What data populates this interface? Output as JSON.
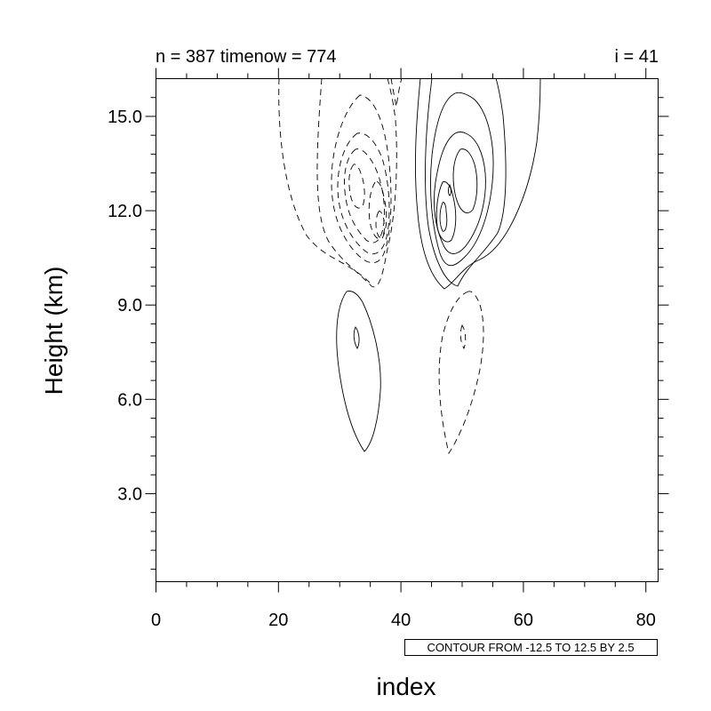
{
  "chart_data": {
    "type": "contour",
    "title_left": "n = 387 timenow = 774",
    "title_right": "i = 41",
    "xlabel": "index",
    "ylabel": "Height (km)",
    "xlim": [
      0,
      82
    ],
    "ylim": [
      0.2,
      16.2
    ],
    "x_ticks": [
      0,
      20,
      40,
      60,
      80
    ],
    "x_tick_labels": [
      "0",
      "20",
      "40",
      "60",
      "80"
    ],
    "y_ticks": [
      3,
      6,
      9,
      12,
      15
    ],
    "y_tick_labels": [
      "3.0",
      "6.0",
      "9.0",
      "12.0",
      "15.0"
    ],
    "contour_info": "CONTOUR FROM -12.5 TO 12.5 BY 2.5",
    "contour_range": {
      "min": -12.5,
      "max": 12.5,
      "interval": 2.5
    },
    "negative_contour_style": "dashed",
    "positive_contour_style": "solid"
  }
}
